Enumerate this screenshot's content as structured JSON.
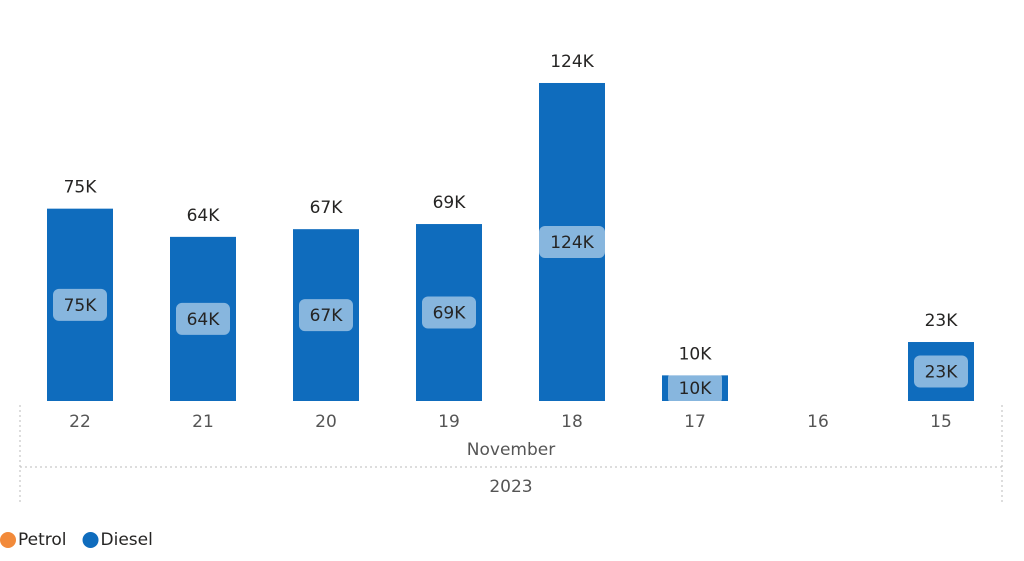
{
  "chart_data": {
    "type": "stacked_bar",
    "categories": [
      "22",
      "21",
      "20",
      "19",
      "18",
      "17",
      "16",
      "15"
    ],
    "x_month": "November",
    "x_year": "2023",
    "series": [
      {
        "name": "Petrol",
        "color": "#f28a3a",
        "values": [
          null,
          null,
          null,
          null,
          null,
          null,
          null,
          null
        ]
      },
      {
        "name": "Diesel",
        "color": "#0f6cbd",
        "values": [
          75000,
          64000,
          67000,
          69000,
          124000,
          10000,
          null,
          23000
        ],
        "value_labels": [
          "75K",
          "64K",
          "67K",
          "69K",
          "124K",
          "10K",
          null,
          "23K"
        ]
      }
    ],
    "ylim": [
      0,
      130000
    ]
  }
}
